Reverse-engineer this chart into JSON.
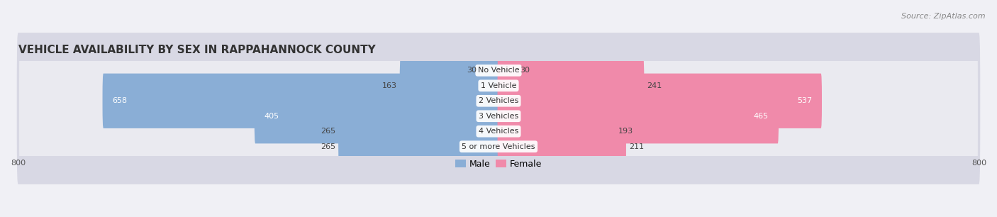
{
  "title": "VEHICLE AVAILABILITY BY SEX IN RAPPAHANNOCK COUNTY",
  "source": "Source: ZipAtlas.com",
  "categories": [
    "No Vehicle",
    "1 Vehicle",
    "2 Vehicles",
    "3 Vehicles",
    "4 Vehicles",
    "5 or more Vehicles"
  ],
  "male_values": [
    30,
    163,
    658,
    405,
    265,
    265
  ],
  "female_values": [
    30,
    241,
    537,
    465,
    193,
    211
  ],
  "male_color": "#8aaed6",
  "female_color": "#f08aaa",
  "male_label": "Male",
  "female_label": "Female",
  "axis_max": 800,
  "bg_color": "#f0f0f5",
  "row_outer_color": "#d8d8e4",
  "row_inner_color": "#eaeaf0",
  "title_fontsize": 11,
  "source_fontsize": 8,
  "label_fontsize": 8,
  "value_fontsize": 8,
  "legend_fontsize": 9,
  "bar_height": 0.6,
  "white_threshold": 350
}
